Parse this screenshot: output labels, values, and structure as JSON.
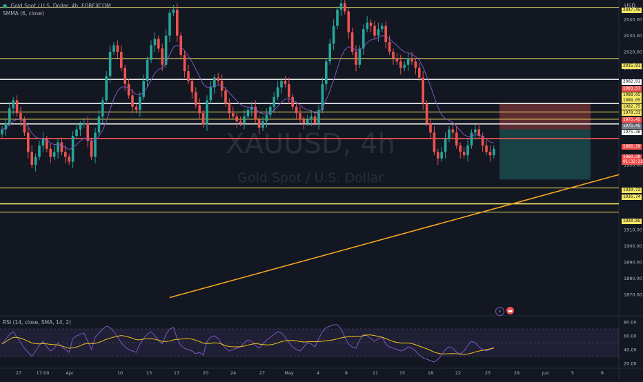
{
  "header": {
    "symbol_title": "Gold Spot / U.S. Dollar, 4h, FOREXCOM",
    "indicator": "SMMA (6, close)",
    "currency": "USD",
    "rsi_label": "RSI (14, close, SMA, 14, 2)"
  },
  "watermark": {
    "ticker": "XAUUSD, 4h",
    "name": "Gold Spot / U.S. Dollar"
  },
  "colors": {
    "background": "#131722",
    "up": "#26a69a",
    "down": "#ef5350",
    "smma": "#7e57c2",
    "yellow_line": "#f5e663",
    "trendline": "#f5a623",
    "red_line": "#ef5350",
    "white_line": "#ffffff"
  },
  "price_axis": {
    "ticks": [
      "2040.00",
      "2030.00",
      "2020.00",
      "2010.00",
      "1970.00",
      "1950.00",
      "1930.00",
      "1910.00",
      "1900.00",
      "1890.00",
      "1880.00",
      "1870.00"
    ],
    "tags": [
      {
        "text": "2047.45",
        "style": "yellow"
      },
      {
        "text": "2015.81",
        "style": "yellow"
      },
      {
        "text": "2002.91",
        "style": "white"
      },
      {
        "text": "1993.57",
        "style": "red"
      },
      {
        "text": "1988.05",
        "style": "yellow"
      },
      {
        "text": "1988.05",
        "style": "yellow"
      },
      {
        "text": "1982.75",
        "style": "yellow"
      },
      {
        "text": "1978.31",
        "style": "yellow"
      },
      {
        "text": "1975.45",
        "style": "red"
      },
      {
        "text": "1975.45",
        "style": "gray"
      },
      {
        "text": "1975.36",
        "style": "white"
      },
      {
        "text": "1966.39",
        "style": "red"
      },
      {
        "text": "1960.30",
        "style": "red"
      },
      {
        "text": "01:32:32",
        "style": "red"
      },
      {
        "text": "1939.72",
        "style": "yellow"
      },
      {
        "text": "1935.74",
        "style": "yellow"
      },
      {
        "text": "1920.85",
        "style": "yellow"
      }
    ]
  },
  "time_axis": [
    "27",
    "17:00",
    "Apr",
    "10",
    "13",
    "17",
    "20",
    "24",
    "27",
    "May",
    "4",
    "8",
    "11",
    "15",
    "18",
    "22",
    "25",
    "29",
    "Jun",
    "5",
    "8"
  ],
  "rsi_axis": [
    "80.00",
    "60.00",
    "40.00",
    "20.00"
  ],
  "chart_data": {
    "type": "candlestick",
    "title": "Gold Spot / U.S. Dollar, 4h, FOREXCOM",
    "ylim": [
      1858,
      2052
    ],
    "horizontal_levels": [
      {
        "price": 2047.45,
        "color": "yellow"
      },
      {
        "price": 2015.81,
        "color": "yellow"
      },
      {
        "price": 2002.91,
        "color": "white"
      },
      {
        "price": 1988.05,
        "color": "white"
      },
      {
        "price": 1982.75,
        "color": "yellow"
      },
      {
        "price": 1978.31,
        "color": "yellow"
      },
      {
        "price": 1975.36,
        "color": "white"
      },
      {
        "price": 1966.39,
        "color": "red"
      },
      {
        "price": 1935.74,
        "color": "yellow"
      },
      {
        "price": 1926.0,
        "color": "yellow"
      },
      {
        "price": 1920.85,
        "color": "yellow"
      }
    ],
    "close_series": [
      1972,
      1976,
      1985,
      1990,
      1982,
      1978,
      1970,
      1958,
      1950,
      1955,
      1962,
      1966,
      1960,
      1955,
      1958,
      1964,
      1958,
      1955,
      1952,
      1968,
      1972,
      1975,
      1976,
      1965,
      1955,
      1970,
      1980,
      1990,
      2005,
      2020,
      2024,
      2020,
      2010,
      2000,
      1993,
      1986,
      1984,
      1992,
      2002,
      2015,
      2024,
      2028,
      2022,
      2012,
      2030,
      2044,
      2046,
      2030,
      2018,
      2008,
      2002,
      1995,
      1987,
      1982,
      1975,
      1990,
      1998,
      2004,
      2002,
      1996,
      1988,
      1982,
      1980,
      1977,
      1976,
      1980,
      1984,
      1986,
      1978,
      1973,
      1977,
      1981,
      1986,
      1992,
      1998,
      2002,
      2000,
      1992,
      1986,
      1982,
      1978,
      1976,
      1978,
      1980,
      1976,
      1984,
      2000,
      2014,
      2025,
      2036,
      2046,
      2050,
      2045,
      2032,
      2020,
      2012,
      2022,
      2034,
      2038,
      2036,
      2030,
      2034,
      2036,
      2026,
      2020,
      2016,
      2014,
      2010,
      2012,
      2016,
      2014,
      2010,
      2004,
      1988,
      1976,
      1970,
      1958,
      1954,
      1958,
      1966,
      1972,
      1970,
      1962,
      1958,
      1956,
      1962,
      1970,
      1972,
      1968,
      1962,
      1958,
      1956,
      1960
    ],
    "rsi_series": [
      48,
      55,
      62,
      66,
      58,
      50,
      42,
      36,
      30,
      38,
      46,
      52,
      44,
      38,
      42,
      50,
      44,
      40,
      36,
      56,
      60,
      62,
      64,
      52,
      40,
      58,
      64,
      70,
      74,
      72,
      66,
      58,
      50,
      44,
      40,
      38,
      36,
      48,
      56,
      62,
      66,
      60,
      54,
      48,
      62,
      70,
      72,
      56,
      46,
      42,
      40,
      38,
      34,
      36,
      32,
      52,
      58,
      60,
      56,
      48,
      42,
      38,
      40,
      42,
      44,
      50,
      54,
      52,
      46,
      42,
      48,
      54,
      58,
      62,
      66,
      64,
      58,
      50,
      44,
      40,
      38,
      44,
      50,
      48,
      44,
      56,
      66,
      72,
      74,
      76,
      76,
      70,
      58,
      48,
      44,
      42,
      54,
      62,
      60,
      56,
      52,
      56,
      58,
      48,
      44,
      42,
      40,
      38,
      40,
      44,
      42,
      38,
      32,
      28,
      26,
      24,
      22,
      26,
      32,
      40,
      44,
      42,
      36,
      34,
      38,
      46,
      52,
      50,
      44,
      40,
      38,
      40,
      44
    ],
    "rsi_ylim": [
      15,
      85
    ],
    "trendline": {
      "from_index": 46,
      "from_price": 1868,
      "to_index": 158,
      "to_price": 1944
    },
    "position_box": {
      "entry": 1972,
      "stop": 1988,
      "target": 1941
    }
  }
}
